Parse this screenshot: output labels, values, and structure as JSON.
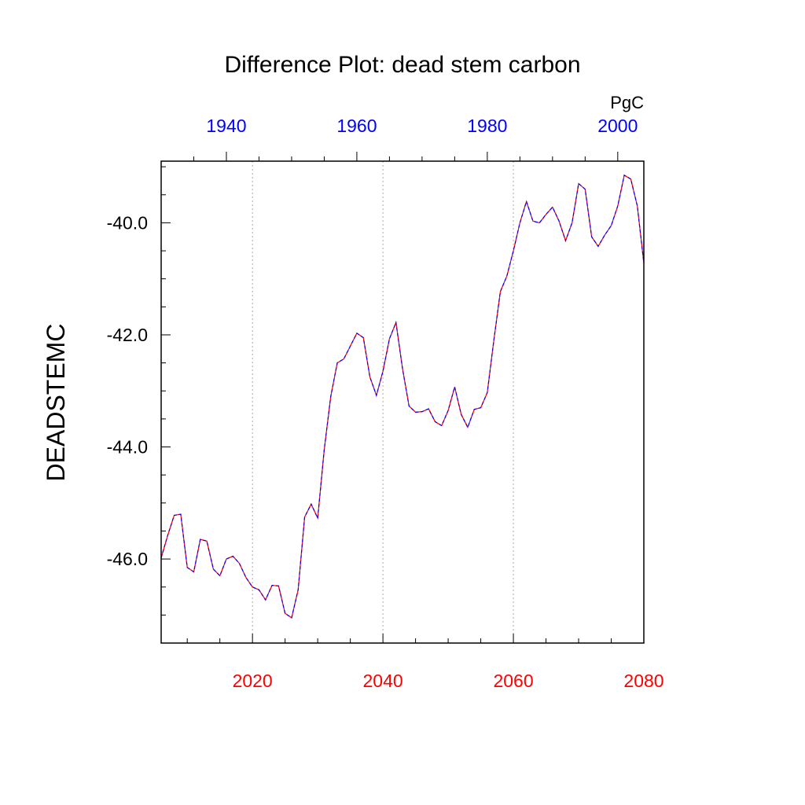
{
  "chart_data": {
    "type": "line",
    "title": "Difference Plot: dead stem carbon",
    "ylabel": "DEADSTEMC",
    "units": "PgC",
    "ylim": [
      -47.5,
      -38.9
    ],
    "yticks": [
      "-40.0",
      "-42.0",
      "-44.0",
      "-46.0"
    ],
    "ytick_values": [
      -40,
      -42,
      -44,
      -46
    ],
    "bottom_axis": {
      "range": [
        2006,
        2080
      ],
      "ticks": [
        "2020",
        "2040",
        "2060",
        "2080"
      ],
      "tick_values": [
        2020,
        2040,
        2060,
        2080
      ],
      "color": "#ff0000"
    },
    "top_axis": {
      "range": [
        1930,
        2004
      ],
      "ticks": [
        "1940",
        "1960",
        "1980",
        "2000"
      ],
      "tick_values": [
        1940,
        1960,
        1980,
        2000
      ],
      "color": "#0000ff"
    },
    "grid": "vertical dotted at major bottom ticks",
    "series": [
      {
        "line_colors": [
          "#ff0000",
          "#0000ff"
        ],
        "x": [
          2006,
          2007,
          2008,
          2009,
          2010,
          2011,
          2012,
          2013,
          2014,
          2015,
          2016,
          2017,
          2018,
          2019,
          2020,
          2021,
          2022,
          2023,
          2024,
          2025,
          2026,
          2027,
          2028,
          2029,
          2030,
          2031,
          2032,
          2033,
          2034,
          2035,
          2036,
          2037,
          2038,
          2039,
          2040,
          2041,
          2042,
          2043,
          2044,
          2045,
          2046,
          2047,
          2048,
          2049,
          2050,
          2051,
          2052,
          2053,
          2054,
          2055,
          2056,
          2057,
          2058,
          2059,
          2060,
          2061,
          2062,
          2063,
          2064,
          2065,
          2066,
          2067,
          2068,
          2069,
          2070,
          2071,
          2072,
          2073,
          2074,
          2075,
          2076,
          2077,
          2078,
          2079,
          2080
        ],
        "y": [
          -45.98,
          -45.58,
          -45.22,
          -45.2,
          -46.15,
          -46.23,
          -45.65,
          -45.68,
          -46.18,
          -46.3,
          -46.0,
          -45.95,
          -46.08,
          -46.33,
          -46.5,
          -46.55,
          -46.73,
          -46.47,
          -46.48,
          -46.97,
          -47.05,
          -46.55,
          -45.25,
          -45.02,
          -45.27,
          -44.05,
          -43.1,
          -42.5,
          -42.43,
          -42.2,
          -41.97,
          -42.05,
          -42.75,
          -43.08,
          -42.65,
          -42.07,
          -41.78,
          -42.6,
          -43.27,
          -43.38,
          -43.37,
          -43.32,
          -43.55,
          -43.62,
          -43.35,
          -42.93,
          -43.42,
          -43.65,
          -43.33,
          -43.3,
          -43.03,
          -42.1,
          -41.23,
          -40.95,
          -40.5,
          -40.0,
          -39.62,
          -39.97,
          -40.0,
          -39.85,
          -39.72,
          -39.97,
          -40.32,
          -40.0,
          -39.3,
          -39.4,
          -40.25,
          -40.42,
          -40.22,
          -40.05,
          -39.7,
          -39.15,
          -39.22,
          -39.7,
          -40.72
        ]
      }
    ]
  }
}
